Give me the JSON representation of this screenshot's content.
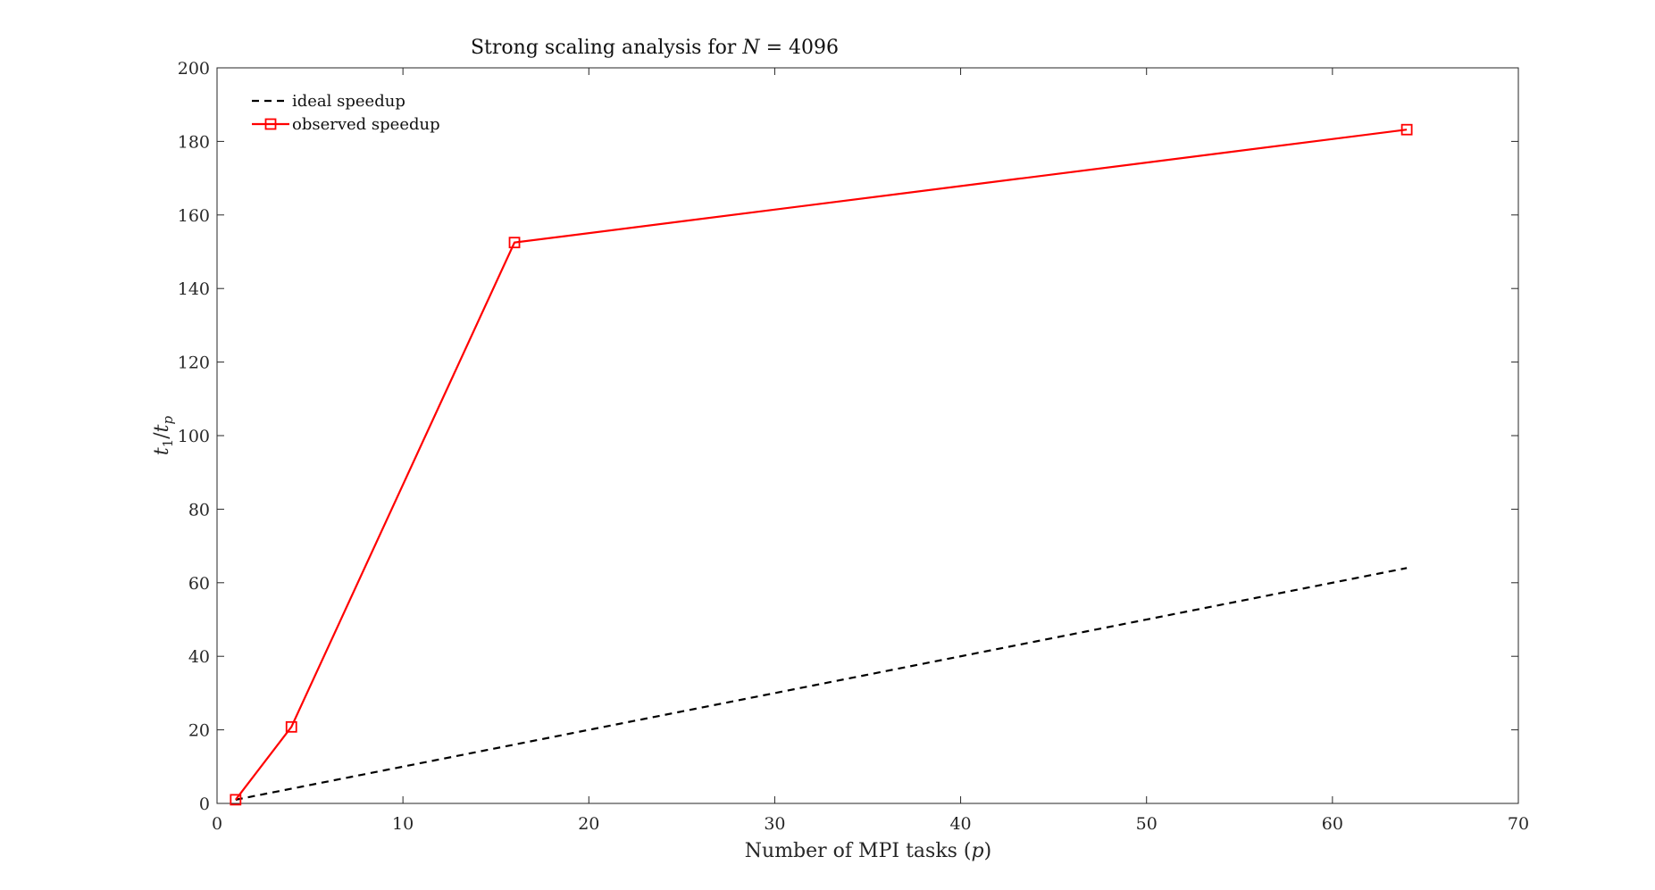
{
  "chart_data": {
    "type": "line",
    "title_prefix": "Strong scaling analysis for ",
    "title_var": "N",
    "title_suffix": " = 4096",
    "xlabel_prefix": "Number of MPI tasks (",
    "xlabel_var": "p",
    "xlabel_suffix": ")",
    "ylabel_num": "t",
    "ylabel_num_sub": "1",
    "ylabel_den": "t",
    "ylabel_den_sub": "p",
    "xlim": [
      0,
      70
    ],
    "ylim": [
      0,
      200
    ],
    "xticks": [
      0,
      10,
      20,
      30,
      40,
      50,
      60,
      70
    ],
    "yticks": [
      0,
      20,
      40,
      60,
      80,
      100,
      120,
      140,
      160,
      180,
      200
    ],
    "grid": false,
    "legend_position": "top-left",
    "series": [
      {
        "name": "ideal speedup",
        "color": "#000000",
        "style": "dashed",
        "marker": "none",
        "x": [
          1,
          64
        ],
        "y": [
          1,
          64
        ]
      },
      {
        "name": "observed speedup",
        "color": "#ff0000",
        "style": "solid",
        "marker": "square",
        "x": [
          1,
          4,
          16,
          64
        ],
        "y": [
          1,
          20.8,
          152.5,
          183.2
        ]
      }
    ]
  }
}
